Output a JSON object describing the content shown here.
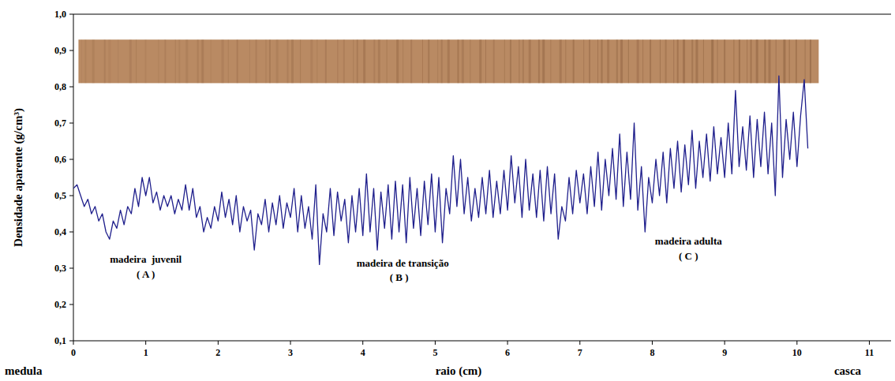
{
  "chart_data": {
    "type": "line",
    "x_label": "raio (cm)",
    "y_label": "Densidade aparente (g/cm³)",
    "x_end_labels": [
      "medula",
      "casca"
    ],
    "annotations": [
      {
        "text": "madeira  juvenil"
      },
      {
        "text": "( A )"
      },
      {
        "text": "madeira de transição"
      },
      {
        "text": "( B )"
      },
      {
        "text": "madeira adulta"
      },
      {
        "text": "( C )"
      }
    ],
    "color": "#1f1f8c",
    "grid": false,
    "xlim": [
      0,
      11.3
    ],
    "xticks": [
      0,
      1,
      2,
      3,
      4,
      5,
      6,
      7,
      8,
      9,
      10,
      11
    ],
    "ylim": [
      0.1,
      1.0
    ],
    "yticks": [
      {
        "value": 0.1,
        "label": "0,1"
      },
      {
        "value": 0.2,
        "label": "0,2"
      },
      {
        "value": 0.3,
        "label": "0,3"
      },
      {
        "value": 0.4,
        "label": "0,4"
      },
      {
        "value": 0.5,
        "label": "0,5"
      },
      {
        "value": 0.6,
        "label": "0,6"
      },
      {
        "value": 0.7,
        "label": "0,7"
      },
      {
        "value": 0.8,
        "label": "0,8"
      },
      {
        "value": 0.9,
        "label": "0,9"
      },
      {
        "value": 1.0,
        "label": "1,0"
      }
    ],
    "x": [
      0.0,
      0.05,
      0.1,
      0.15,
      0.2,
      0.25,
      0.3,
      0.35,
      0.4,
      0.45,
      0.5,
      0.55,
      0.6,
      0.65,
      0.7,
      0.75,
      0.8,
      0.85,
      0.9,
      0.95,
      1.0,
      1.05,
      1.1,
      1.15,
      1.2,
      1.25,
      1.3,
      1.35,
      1.4,
      1.45,
      1.5,
      1.55,
      1.6,
      1.65,
      1.7,
      1.75,
      1.8,
      1.85,
      1.9,
      1.95,
      2.0,
      2.05,
      2.1,
      2.15,
      2.2,
      2.25,
      2.3,
      2.35,
      2.4,
      2.45,
      2.5,
      2.55,
      2.6,
      2.65,
      2.7,
      2.75,
      2.8,
      2.85,
      2.9,
      2.95,
      3.0,
      3.05,
      3.1,
      3.15,
      3.2,
      3.25,
      3.3,
      3.35,
      3.4,
      3.45,
      3.5,
      3.55,
      3.6,
      3.65,
      3.7,
      3.75,
      3.8,
      3.85,
      3.9,
      3.95,
      4.0,
      4.05,
      4.1,
      4.15,
      4.2,
      4.25,
      4.3,
      4.35,
      4.4,
      4.45,
      4.5,
      4.55,
      4.6,
      4.65,
      4.7,
      4.75,
      4.8,
      4.85,
      4.9,
      4.95,
      5.0,
      5.05,
      5.1,
      5.15,
      5.2,
      5.25,
      5.3,
      5.35,
      5.4,
      5.45,
      5.5,
      5.55,
      5.6,
      5.65,
      5.7,
      5.75,
      5.8,
      5.85,
      5.9,
      5.95,
      6.0,
      6.05,
      6.1,
      6.15,
      6.2,
      6.25,
      6.3,
      6.35,
      6.4,
      6.45,
      6.5,
      6.55,
      6.6,
      6.65,
      6.7,
      6.75,
      6.8,
      6.85,
      6.9,
      6.95,
      7.0,
      7.05,
      7.1,
      7.15,
      7.2,
      7.25,
      7.3,
      7.35,
      7.4,
      7.45,
      7.5,
      7.55,
      7.6,
      7.65,
      7.7,
      7.75,
      7.8,
      7.85,
      7.9,
      7.95,
      8.0,
      8.05,
      8.1,
      8.15,
      8.2,
      8.25,
      8.3,
      8.35,
      8.4,
      8.45,
      8.5,
      8.55,
      8.6,
      8.65,
      8.7,
      8.75,
      8.8,
      8.85,
      8.9,
      8.95,
      9.0,
      9.05,
      9.1,
      9.15,
      9.2,
      9.25,
      9.3,
      9.35,
      9.4,
      9.45,
      9.5,
      9.55,
      9.6,
      9.65,
      9.7,
      9.75,
      9.8,
      9.85,
      9.9,
      9.95,
      10.0,
      10.05,
      10.1,
      10.15
    ],
    "values": [
      0.52,
      0.53,
      0.5,
      0.47,
      0.49,
      0.45,
      0.47,
      0.43,
      0.45,
      0.4,
      0.38,
      0.43,
      0.41,
      0.46,
      0.42,
      0.47,
      0.45,
      0.52,
      0.47,
      0.55,
      0.5,
      0.55,
      0.48,
      0.51,
      0.46,
      0.5,
      0.47,
      0.5,
      0.45,
      0.49,
      0.46,
      0.53,
      0.46,
      0.52,
      0.44,
      0.47,
      0.4,
      0.44,
      0.41,
      0.47,
      0.43,
      0.51,
      0.44,
      0.49,
      0.42,
      0.5,
      0.4,
      0.47,
      0.43,
      0.46,
      0.35,
      0.45,
      0.42,
      0.49,
      0.4,
      0.48,
      0.42,
      0.5,
      0.41,
      0.48,
      0.44,
      0.52,
      0.4,
      0.5,
      0.41,
      0.47,
      0.38,
      0.53,
      0.31,
      0.45,
      0.4,
      0.52,
      0.39,
      0.51,
      0.43,
      0.49,
      0.37,
      0.5,
      0.4,
      0.52,
      0.39,
      0.56,
      0.4,
      0.52,
      0.35,
      0.51,
      0.41,
      0.53,
      0.38,
      0.54,
      0.4,
      0.53,
      0.37,
      0.55,
      0.41,
      0.52,
      0.39,
      0.54,
      0.42,
      0.56,
      0.4,
      0.55,
      0.37,
      0.52,
      0.45,
      0.61,
      0.47,
      0.6,
      0.45,
      0.55,
      0.43,
      0.52,
      0.44,
      0.55,
      0.45,
      0.57,
      0.44,
      0.54,
      0.45,
      0.57,
      0.46,
      0.61,
      0.48,
      0.58,
      0.44,
      0.6,
      0.46,
      0.56,
      0.44,
      0.57,
      0.43,
      0.58,
      0.45,
      0.56,
      0.38,
      0.47,
      0.43,
      0.55,
      0.45,
      0.57,
      0.48,
      0.56,
      0.45,
      0.58,
      0.47,
      0.62,
      0.46,
      0.6,
      0.5,
      0.63,
      0.49,
      0.67,
      0.47,
      0.62,
      0.49,
      0.7,
      0.46,
      0.58,
      0.4,
      0.55,
      0.48,
      0.6,
      0.5,
      0.62,
      0.48,
      0.63,
      0.52,
      0.65,
      0.51,
      0.64,
      0.53,
      0.68,
      0.52,
      0.65,
      0.55,
      0.67,
      0.54,
      0.69,
      0.56,
      0.66,
      0.55,
      0.7,
      0.56,
      0.79,
      0.58,
      0.69,
      0.57,
      0.72,
      0.55,
      0.71,
      0.58,
      0.73,
      0.56,
      0.7,
      0.5,
      0.83,
      0.55,
      0.71,
      0.6,
      0.73,
      0.58,
      0.72,
      0.82,
      0.63
    ]
  }
}
